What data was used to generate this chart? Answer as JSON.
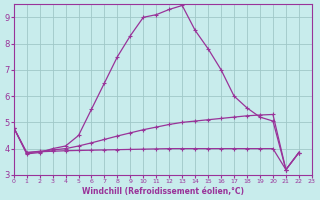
{
  "xlabel": "Windchill (Refroidissement éolien,°C)",
  "bg_color": "#c8ecec",
  "grid_color": "#a0c8c8",
  "line_color": "#993399",
  "xlim": [
    0,
    23
  ],
  "ylim": [
    3,
    9.5
  ],
  "yticks": [
    3,
    4,
    5,
    6,
    7,
    8,
    9
  ],
  "xticks": [
    0,
    1,
    2,
    3,
    4,
    5,
    6,
    7,
    8,
    9,
    10,
    11,
    12,
    13,
    14,
    15,
    16,
    17,
    18,
    19,
    20,
    21,
    22,
    23
  ],
  "line1_x": [
    0,
    1,
    2,
    3,
    4,
    5,
    6,
    7,
    8,
    9,
    10,
    11,
    12,
    13,
    14,
    15,
    16,
    17,
    18,
    19,
    20,
    21,
    22
  ],
  "line1_y": [
    4.8,
    3.8,
    3.85,
    4.0,
    4.1,
    4.5,
    5.5,
    6.5,
    7.5,
    8.3,
    9.0,
    9.1,
    9.3,
    9.45,
    8.5,
    7.8,
    7.0,
    6.0,
    5.55,
    5.2,
    5.05,
    3.2,
    3.85
  ],
  "line2_x": [
    0,
    1,
    2,
    3,
    4,
    5,
    6,
    7,
    8,
    9,
    10,
    11,
    12,
    13,
    14,
    15,
    16,
    17,
    18,
    19,
    20,
    21,
    22
  ],
  "line2_y": [
    4.8,
    3.85,
    3.88,
    3.9,
    3.92,
    3.93,
    3.94,
    3.95,
    3.96,
    3.97,
    3.98,
    3.99,
    4.0,
    4.0,
    4.0,
    4.0,
    4.0,
    4.0,
    4.0,
    4.0,
    4.0,
    3.2,
    3.85
  ],
  "line3_x": [
    0,
    1,
    2,
    3,
    4,
    5,
    6,
    7,
    8,
    9,
    10,
    11,
    12,
    13,
    14,
    15,
    16,
    17,
    18,
    19,
    20,
    21,
    22
  ],
  "line3_y": [
    4.8,
    3.85,
    3.9,
    3.95,
    4.0,
    4.1,
    4.22,
    4.35,
    4.48,
    4.6,
    4.72,
    4.82,
    4.92,
    5.0,
    5.05,
    5.1,
    5.15,
    5.2,
    5.25,
    5.28,
    5.3,
    3.2,
    3.85
  ]
}
